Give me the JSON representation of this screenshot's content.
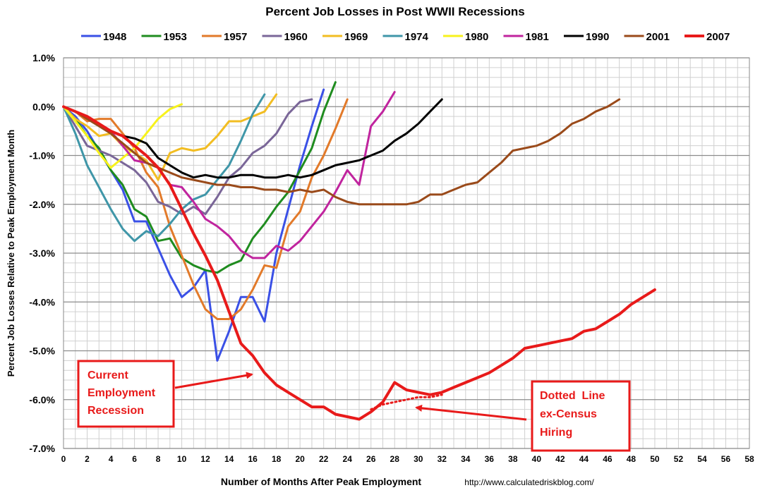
{
  "chart_data": {
    "type": "line",
    "title": "Percent Job Losses in Post WWII Recessions",
    "xlabel": "Number of Months After Peak Employment",
    "ylabel": "Percent Job Losses Relative to Peak Employment Month",
    "source_text": "http://www.calculatedriskblog.com/",
    "xlim": [
      0,
      58
    ],
    "ylim": [
      -7.0,
      1.0
    ],
    "x_ticks": [
      0,
      2,
      4,
      6,
      8,
      10,
      12,
      14,
      16,
      18,
      20,
      22,
      24,
      26,
      28,
      30,
      32,
      34,
      36,
      38,
      40,
      42,
      44,
      46,
      48,
      50,
      52,
      54,
      56,
      58
    ],
    "y_ticks": [
      1.0,
      0.0,
      -1.0,
      -2.0,
      -3.0,
      -4.0,
      -5.0,
      -6.0,
      -7.0
    ],
    "y_tick_labels": [
      "1.0%",
      "0.0%",
      "-1.0%",
      "-2.0%",
      "-3.0%",
      "-4.0%",
      "-5.0%",
      "-6.0%",
      "-7.0%"
    ],
    "grid": true,
    "legend_position": "top",
    "series": [
      {
        "name": "1948",
        "color": "#3a50e6",
        "values": [
          0,
          -0.2,
          -0.5,
          -0.9,
          -1.3,
          -1.7,
          -2.35,
          -2.35,
          -2.9,
          -3.45,
          -3.9,
          -3.7,
          -3.35,
          -5.2,
          -4.6,
          -3.9,
          -3.9,
          -4.4,
          -3.0,
          -2.1,
          -1.2,
          -0.4,
          0.35
        ]
      },
      {
        "name": "1953",
        "color": "#1f8c1f",
        "values": [
          0,
          -0.25,
          -0.6,
          -0.85,
          -1.3,
          -1.6,
          -2.1,
          -2.25,
          -2.75,
          -2.7,
          -3.1,
          -3.25,
          -3.35,
          -3.4,
          -3.25,
          -3.15,
          -2.7,
          -2.4,
          -2.05,
          -1.75,
          -1.3,
          -0.85,
          -0.1,
          0.5
        ]
      },
      {
        "name": "1957",
        "color": "#e27a2a",
        "values": [
          0,
          -0.1,
          -0.3,
          -0.25,
          -0.25,
          -0.55,
          -0.85,
          -1.35,
          -1.65,
          -2.45,
          -3.05,
          -3.65,
          -4.15,
          -4.35,
          -4.35,
          -4.15,
          -3.75,
          -3.25,
          -3.3,
          -2.45,
          -2.15,
          -1.45,
          -1.0,
          -0.45,
          0.15
        ]
      },
      {
        "name": "1960",
        "color": "#7a6698",
        "values": [
          0,
          -0.4,
          -0.8,
          -0.9,
          -1.0,
          -1.15,
          -1.3,
          -1.55,
          -1.95,
          -2.05,
          -2.2,
          -2.05,
          -2.2,
          -1.85,
          -1.45,
          -1.25,
          -0.95,
          -0.8,
          -0.55,
          -0.15,
          0.1,
          0.15
        ]
      },
      {
        "name": "1969",
        "color": "#f2bd22",
        "values": [
          0,
          -0.25,
          -0.4,
          -0.6,
          -0.55,
          -0.8,
          -0.95,
          -1.1,
          -1.5,
          -0.95,
          -0.85,
          -0.9,
          -0.85,
          -0.6,
          -0.3,
          -0.3,
          -0.2,
          -0.1,
          0.25
        ]
      },
      {
        "name": "1974",
        "color": "#3f96a8",
        "values": [
          0,
          -0.55,
          -1.2,
          -1.65,
          -2.1,
          -2.5,
          -2.75,
          -2.55,
          -2.65,
          -2.4,
          -2.1,
          -1.9,
          -1.8,
          -1.5,
          -1.2,
          -0.7,
          -0.15,
          0.25
        ]
      },
      {
        "name": "1980",
        "color": "#f7f21c",
        "values": [
          0,
          -0.3,
          -0.6,
          -0.95,
          -1.25,
          -1.05,
          -0.85,
          -0.55,
          -0.25,
          -0.05,
          0.05
        ]
      },
      {
        "name": "1981",
        "color": "#c0249e",
        "values": [
          0,
          -0.1,
          -0.2,
          -0.35,
          -0.5,
          -0.8,
          -1.1,
          -1.15,
          -1.25,
          -1.6,
          -1.65,
          -1.95,
          -2.3,
          -2.45,
          -2.65,
          -2.95,
          -3.1,
          -3.1,
          -2.85,
          -2.95,
          -2.75,
          -2.45,
          -2.15,
          -1.75,
          -1.3,
          -1.6,
          -0.4,
          -0.1,
          0.3
        ]
      },
      {
        "name": "1990",
        "color": "#000000",
        "values": [
          0,
          -0.1,
          -0.2,
          -0.35,
          -0.5,
          -0.6,
          -0.65,
          -0.75,
          -1.05,
          -1.2,
          -1.35,
          -1.45,
          -1.4,
          -1.45,
          -1.45,
          -1.4,
          -1.4,
          -1.45,
          -1.45,
          -1.4,
          -1.45,
          -1.4,
          -1.3,
          -1.2,
          -1.15,
          -1.1,
          -1.0,
          -0.9,
          -0.7,
          -0.55,
          -0.35,
          -0.1,
          0.15
        ]
      },
      {
        "name": "2001",
        "color": "#9a4a1a",
        "values": [
          0,
          -0.1,
          -0.25,
          -0.4,
          -0.55,
          -0.75,
          -0.95,
          -1.15,
          -1.25,
          -1.35,
          -1.45,
          -1.5,
          -1.55,
          -1.6,
          -1.6,
          -1.65,
          -1.65,
          -1.7,
          -1.7,
          -1.75,
          -1.7,
          -1.75,
          -1.7,
          -1.85,
          -1.95,
          -2.0,
          -2.0,
          -2.0,
          -2.0,
          -2.0,
          -1.95,
          -1.8,
          -1.8,
          -1.7,
          -1.6,
          -1.55,
          -1.35,
          -1.15,
          -0.9,
          -0.85,
          -0.8,
          -0.7,
          -0.55,
          -0.35,
          -0.25,
          -0.1,
          0.0,
          0.15
        ]
      },
      {
        "name": "2007",
        "color": "#e81a1a",
        "values": [
          0,
          -0.1,
          -0.2,
          -0.35,
          -0.5,
          -0.6,
          -0.8,
          -1.0,
          -1.25,
          -1.6,
          -2.1,
          -2.6,
          -3.05,
          -3.55,
          -4.2,
          -4.85,
          -5.1,
          -5.45,
          -5.7,
          -5.85,
          -6.0,
          -6.15,
          -6.15,
          -6.3,
          -6.35,
          -6.4,
          -6.25,
          -6.05,
          -5.65,
          -5.8,
          -5.85,
          -5.9,
          -5.85,
          -5.75,
          -5.65,
          -5.55,
          -5.45,
          -5.3,
          -5.15,
          -4.95,
          -4.9,
          -4.85,
          -4.8,
          -4.75,
          -4.6,
          -4.55,
          -4.4,
          -4.25,
          -4.05,
          -3.9,
          -3.75
        ]
      }
    ],
    "dotted_series": {
      "name": "ex-Census",
      "color": "#e81a1a",
      "x": [
        26,
        27,
        28,
        29,
        30,
        31,
        32
      ],
      "values": [
        -6.2,
        -6.1,
        -6.05,
        -6.0,
        -5.95,
        -5.95,
        -5.9
      ]
    },
    "annotations": [
      {
        "lines": [
          "Current",
          "Employment",
          "Recession"
        ],
        "arrow_to": [
          16,
          -5.45
        ]
      },
      {
        "lines": [
          "Dotted  Line",
          "ex-Census",
          "Hiring"
        ],
        "arrow_to": [
          30,
          -6.1
        ]
      }
    ]
  }
}
